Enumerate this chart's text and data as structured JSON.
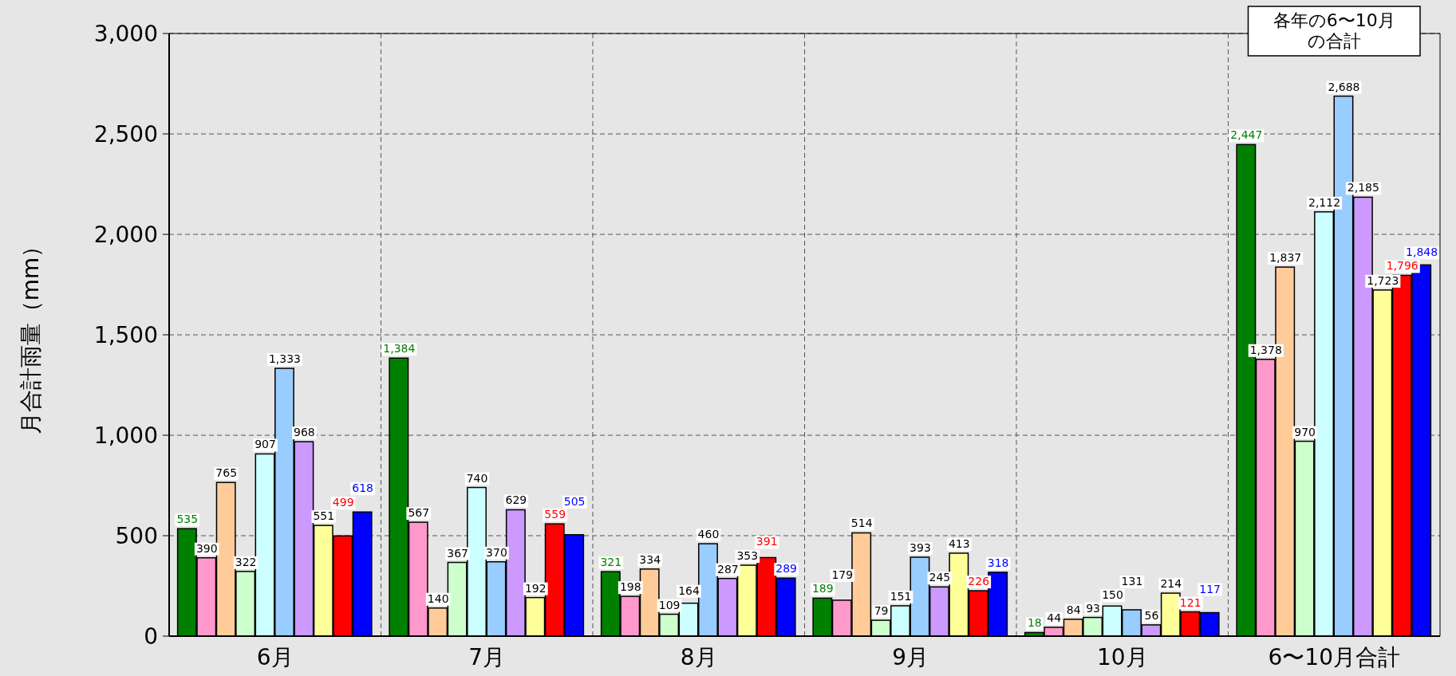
{
  "chart_data": {
    "type": "bar",
    "ylabel": "月合計雨量（mm）",
    "categories": [
      "6月",
      "7月",
      "8月",
      "9月",
      "10月",
      "6〜10月合計"
    ],
    "series": [
      {
        "color": "#008000",
        "values": [
          535,
          1384,
          321,
          189,
          18,
          2447
        ],
        "value_labels": [
          "535",
          "1,384",
          "321",
          "189",
          "18",
          "2,447"
        ]
      },
      {
        "color": "#ff99cc",
        "values": [
          390,
          567,
          198,
          179,
          44,
          1378
        ],
        "value_labels": [
          "390",
          "567",
          "198",
          "179",
          "44",
          "1,378"
        ]
      },
      {
        "color": "#ffcc99",
        "values": [
          765,
          140,
          334,
          514,
          84,
          1837
        ],
        "value_labels": [
          "765",
          "140",
          "334",
          "514",
          "84",
          "1,837"
        ]
      },
      {
        "color": "#ccffcc",
        "values": [
          322,
          367,
          109,
          79,
          93,
          970
        ],
        "value_labels": [
          "322",
          "367",
          "109",
          "79",
          "93",
          "970"
        ]
      },
      {
        "color": "#ccffff",
        "values": [
          907,
          740,
          164,
          151,
          150,
          2112
        ],
        "value_labels": [
          "907",
          "740",
          "164",
          "151",
          "150",
          "2,112"
        ]
      },
      {
        "color": "#99ccff",
        "values": [
          1333,
          370,
          460,
          393,
          131,
          2688
        ],
        "value_labels": [
          "1,333",
          "370",
          "460",
          "393",
          "131",
          "2,688"
        ]
      },
      {
        "color": "#cc99ff",
        "values": [
          968,
          629,
          287,
          245,
          56,
          2185
        ],
        "value_labels": [
          "968",
          "629",
          "287",
          "245",
          "56",
          "2,185"
        ]
      },
      {
        "color": "#ffff99",
        "values": [
          551,
          192,
          353,
          413,
          214,
          1723
        ],
        "value_labels": [
          "551",
          "192",
          "353",
          "413",
          "214",
          "1,723"
        ]
      },
      {
        "color": "#ff0000",
        "values": [
          499,
          559,
          391,
          226,
          121,
          1796
        ],
        "value_labels": [
          "499",
          "559",
          "391",
          "226",
          "121",
          "1,796"
        ]
      },
      {
        "color": "#0000ff",
        "values": [
          618,
          505,
          289,
          318,
          117,
          1848
        ],
        "value_labels": [
          "618",
          "505",
          "289",
          "318",
          "117",
          "1,848"
        ]
      }
    ],
    "ylim": [
      0,
      3000
    ],
    "yticks": [
      0,
      500,
      {
        "value": 1000,
        "label": "1,000"
      },
      {
        "value": 1500,
        "label": "1,500"
      },
      {
        "value": 2000,
        "label": "2,000"
      },
      {
        "value": 2500,
        "label": "2,500"
      },
      {
        "value": 3000,
        "label": "3,000"
      }
    ],
    "grid": true,
    "annotations": [
      "各年の6〜10月の合計"
    ]
  }
}
